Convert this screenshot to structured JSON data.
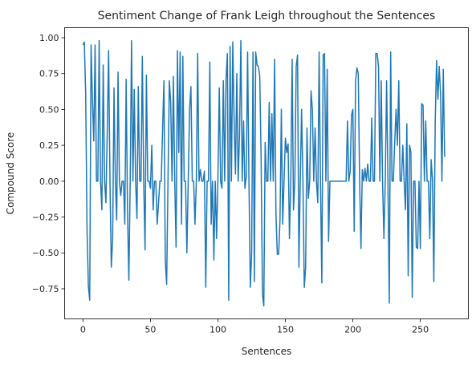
{
  "chart_data": {
    "type": "line",
    "title": "Sentiment Change of Frank Leigh throughout the Sentences",
    "xlabel": "Sentences",
    "ylabel": "Compound Score",
    "xlim": [
      -13.6,
      285.6
    ],
    "ylim": [
      -0.96,
      1.07
    ],
    "xticks": [
      0,
      50,
      100,
      150,
      200,
      250
    ],
    "yticks": [
      -0.75,
      -0.5,
      -0.25,
      0.0,
      0.25,
      0.5,
      0.75,
      1.0
    ],
    "xtick_labels": [
      "0",
      "50",
      "100",
      "150",
      "200",
      "250"
    ],
    "ytick_labels": [
      "−0.75",
      "−0.50",
      "−0.25",
      "0.00",
      "0.25",
      "0.50",
      "0.75",
      "1.00"
    ],
    "grid": false,
    "legend": "none",
    "line_color": "#1f77b4",
    "series": [
      {
        "values": [
          0.95,
          0.97,
          0.61,
          -0.33,
          -0.73,
          -0.83,
          0.95,
          0.57,
          0.28,
          0.95,
          0.0,
          0.0,
          0.98,
          0.0,
          -0.2,
          0.81,
          0.0,
          -0.15,
          0.35,
          0.91,
          0.0,
          -0.6,
          -0.4,
          0.65,
          0.0,
          -0.27,
          0.76,
          0.0,
          -0.1,
          0.0,
          0.0,
          -0.3,
          0.71,
          -0.2,
          -0.69,
          0.0,
          0.98,
          0.0,
          0.64,
          0.0,
          -0.26,
          0.66,
          0.0,
          0.0,
          0.87,
          0.0,
          -0.48,
          0.74,
          0.0,
          0.0,
          -0.05,
          0.25,
          -0.2,
          0.0,
          0.0,
          -0.3,
          -0.15,
          0.0,
          0.0,
          0.36,
          0.7,
          -0.55,
          -0.72,
          0.0,
          0.7,
          0.55,
          0.0,
          0.73,
          0.0,
          -0.46,
          0.91,
          0.2,
          0.9,
          -0.3,
          0.87,
          0.0,
          0.0,
          -0.5,
          0.0,
          0.5,
          0.66,
          0.0,
          0.0,
          -0.3,
          0.0,
          0.89,
          0.0,
          0.08,
          0.0,
          0.0,
          0.07,
          -0.74,
          0.0,
          0.0,
          0.83,
          -0.3,
          0.0,
          -0.55,
          0.0,
          -0.4,
          0.02,
          0.65,
          0.0,
          -0.05,
          0.7,
          0.0,
          0.71,
          0.89,
          -0.83,
          0.94,
          0.0,
          0.97,
          0.43,
          0.05,
          0.75,
          0.0,
          0.33,
          0.98,
          0.0,
          0.42,
          -0.05,
          0.03,
          0.9,
          0.0,
          -0.74,
          -0.5,
          0.9,
          -0.7,
          0.9,
          0.81,
          0.8,
          0.73,
          0.16,
          -0.79,
          -0.87,
          0.27,
          0.0,
          0.0,
          0.55,
          0.0,
          0.47,
          0.0,
          0.85,
          -0.23,
          -0.51,
          -0.51,
          -0.27,
          0.5,
          -0.3,
          0.0,
          0.3,
          0.2,
          0.26,
          -0.4,
          0.0,
          0.85,
          -0.2,
          0.0,
          0.8,
          0.88,
          -0.6,
          0.0,
          0.5,
          0.0,
          -0.74,
          -0.6,
          0.37,
          -0.12,
          0.0,
          0.63,
          0.5,
          0.0,
          0.37,
          0.0,
          -0.15,
          0.9,
          0.0,
          -0.71,
          0.88,
          0.89,
          0.0,
          0.78,
          -0.42,
          0.0,
          0.0,
          0.0,
          0.0,
          0.0,
          0.0,
          0.0,
          0.0,
          0.0,
          0.0,
          0.0,
          0.0,
          0.0,
          0.42,
          0.0,
          0.07,
          0.46,
          0.5,
          -0.35,
          0.7,
          0.79,
          0.75,
          0.0,
          -0.47,
          0.08,
          0.0,
          0.09,
          0.0,
          0.12,
          0.0,
          0.0,
          0.44,
          0.0,
          0.0,
          0.89,
          0.89,
          0.8,
          0.0,
          0.7,
          0.0,
          -0.4,
          0.0,
          0.7,
          0.0,
          -0.85,
          0.9,
          0.0,
          0.0,
          0.27,
          0.5,
          0.25,
          0.7,
          0.0,
          0.0,
          0.25,
          0.0,
          -0.2,
          0.4,
          -0.66,
          0.25,
          0.2,
          -0.81,
          0.0,
          0.0,
          -0.46,
          -0.47,
          0.0,
          -0.47,
          0.54,
          0.53,
          0.0,
          0.42,
          0.0,
          0.0,
          -0.4,
          0.15,
          0.01,
          -0.7,
          0.4,
          0.84,
          0.57,
          0.8,
          0.6,
          0.0,
          0.78,
          0.17
        ]
      }
    ]
  }
}
